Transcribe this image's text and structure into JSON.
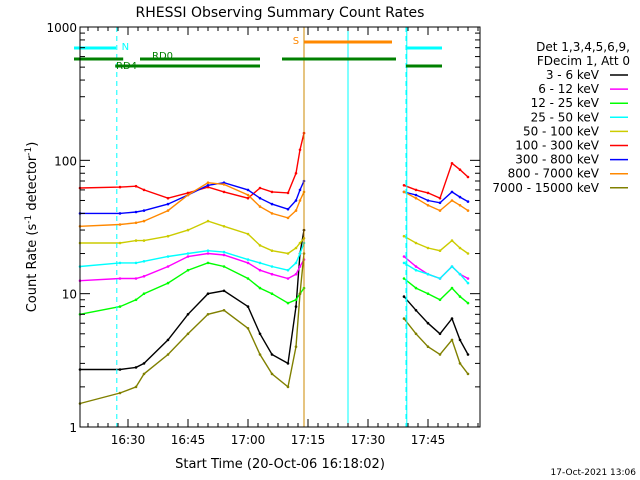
{
  "chart_data": {
    "type": "line",
    "title": "RHESSI Observing Summary Count Rates",
    "xlabel": "Start Time (20-Oct-06 16:18:02)",
    "ylabel_main": "Count Rate (s",
    "ylabel_sup1": "-1",
    "ylabel_mid": " detector",
    "ylabel_sup2": "-1",
    "ylabel_end": ")",
    "ylog": true,
    "ylim": [
      1,
      1000
    ],
    "xlim": [
      "16:18",
      "17:58"
    ],
    "x_ticks": [
      {
        "t": 30.0,
        "label": "16:30"
      },
      {
        "t": 45.0,
        "label": "16:45"
      },
      {
        "t": 60.0,
        "label": "17:00"
      },
      {
        "t": 75.0,
        "label": "17:15"
      },
      {
        "t": 90.0,
        "label": "17:30"
      },
      {
        "t": 105.0,
        "label": "17:45"
      }
    ],
    "y_ticks": [
      {
        "v": 1,
        "label": "1"
      },
      {
        "v": 10,
        "label": "10"
      },
      {
        "v": 100,
        "label": "100"
      },
      {
        "v": 1000,
        "label": "1000"
      }
    ],
    "legend_header": [
      "Det 1,3,4,5,6,9,",
      "FDecim 1, Att 0"
    ],
    "legend_position": "right",
    "series": [
      {
        "name": "3 - 6 keV",
        "color": "#000000",
        "x": [
          "16:18",
          "16:28",
          "16:32",
          "16:34",
          "16:40",
          "16:45",
          "16:50",
          "16:54",
          "17:00",
          "17:03",
          "17:06",
          "17:10",
          "17:12",
          "17:13",
          "17:14",
          "17:15",
          "17:39",
          "17:42",
          "17:45",
          "17:48",
          "17:51",
          "17:53",
          "17:55"
        ],
        "y": [
          2.7,
          2.7,
          2.8,
          3.0,
          4.5,
          7.0,
          10.0,
          10.5,
          8.0,
          5.0,
          3.5,
          3.0,
          8.0,
          20.0,
          30.0,
          null,
          9.5,
          7.5,
          6.0,
          5.0,
          6.5,
          4.5,
          3.5
        ]
      },
      {
        "name": "6 - 12 keV",
        "color": "#ff00ff",
        "x": [
          "16:18",
          "16:28",
          "16:32",
          "16:34",
          "16:40",
          "16:45",
          "16:50",
          "16:54",
          "17:00",
          "17:03",
          "17:06",
          "17:10",
          "17:12",
          "17:13",
          "17:14",
          "17:15",
          "17:39",
          "17:42",
          "17:45",
          "17:48",
          "17:51",
          "17:53",
          "17:55"
        ],
        "y": [
          12.5,
          13,
          13,
          13.5,
          16,
          19,
          20,
          19.5,
          17,
          15,
          14,
          13,
          14,
          16,
          18,
          null,
          19,
          16,
          14,
          13,
          16,
          14,
          13
        ]
      },
      {
        "name": "12 - 25 keV",
        "color": "#00ff00",
        "x": [
          "16:18",
          "16:28",
          "16:32",
          "16:34",
          "16:40",
          "16:45",
          "16:50",
          "16:54",
          "17:00",
          "17:03",
          "17:06",
          "17:10",
          "17:12",
          "17:13",
          "17:14",
          "17:15",
          "17:39",
          "17:42",
          "17:45",
          "17:48",
          "17:51",
          "17:53",
          "17:55"
        ],
        "y": [
          7,
          8,
          9,
          10,
          12,
          15,
          17,
          16,
          13,
          11,
          10,
          8.5,
          9,
          10,
          11,
          null,
          13,
          11,
          10,
          9,
          11,
          9.5,
          8.5
        ]
      },
      {
        "name": "25 - 50 keV",
        "color": "#00ffff",
        "x": [
          "16:18",
          "16:28",
          "16:32",
          "16:34",
          "16:40",
          "16:45",
          "16:50",
          "16:54",
          "17:00",
          "17:03",
          "17:06",
          "17:10",
          "17:12",
          "17:13",
          "17:14",
          "17:15",
          "17:39",
          "17:42",
          "17:45",
          "17:48",
          "17:51",
          "17:53",
          "17:55"
        ],
        "y": [
          16,
          17,
          17,
          17.5,
          19,
          20,
          21,
          20.5,
          18,
          17,
          16,
          15,
          17,
          20,
          24,
          null,
          17,
          15,
          14,
          13,
          16,
          14,
          12
        ]
      },
      {
        "name": "50 - 100 keV",
        "color": "#cccc00",
        "x": [
          "16:18",
          "16:28",
          "16:32",
          "16:34",
          "16:40",
          "16:45",
          "16:50",
          "16:54",
          "17:00",
          "17:03",
          "17:06",
          "17:10",
          "17:12",
          "17:13",
          "17:14",
          "17:15",
          "17:39",
          "17:42",
          "17:45",
          "17:48",
          "17:51",
          "17:53",
          "17:55"
        ],
        "y": [
          24,
          24,
          25,
          25,
          27,
          30,
          35,
          32,
          28,
          23,
          21,
          20,
          22,
          24,
          26,
          null,
          27,
          24,
          22,
          21,
          25,
          22,
          20
        ]
      },
      {
        "name": "100 - 300 keV",
        "color": "#ff0000",
        "x": [
          "16:18",
          "16:28",
          "16:32",
          "16:34",
          "16:40",
          "16:45",
          "16:50",
          "16:54",
          "17:00",
          "17:03",
          "17:06",
          "17:10",
          "17:12",
          "17:13",
          "17:14",
          "17:15",
          "17:39",
          "17:42",
          "17:45",
          "17:48",
          "17:51",
          "17:53",
          "17:55"
        ],
        "y": [
          62,
          63,
          64,
          60,
          52,
          57,
          63,
          58,
          52,
          62,
          58,
          57,
          80,
          120,
          160,
          null,
          65,
          60,
          57,
          52,
          95,
          85,
          75
        ]
      },
      {
        "name": "300 - 800 keV",
        "color": "#0000ff",
        "x": [
          "16:18",
          "16:28",
          "16:32",
          "16:34",
          "16:40",
          "16:45",
          "16:50",
          "16:54",
          "17:00",
          "17:03",
          "17:06",
          "17:10",
          "17:12",
          "17:13",
          "17:14",
          "17:15",
          "17:39",
          "17:42",
          "17:45",
          "17:48",
          "17:51",
          "17:53",
          "17:55"
        ],
        "y": [
          40,
          40,
          41,
          42,
          47,
          55,
          65,
          68,
          60,
          52,
          47,
          43,
          50,
          60,
          70,
          null,
          58,
          55,
          50,
          48,
          58,
          53,
          49
        ]
      },
      {
        "name": "800 - 7000 keV",
        "color": "#ff8800",
        "x": [
          "16:18",
          "16:28",
          "16:32",
          "16:34",
          "16:40",
          "16:45",
          "16:50",
          "16:54",
          "17:00",
          "17:03",
          "17:06",
          "17:10",
          "17:12",
          "17:13",
          "17:14",
          "17:15",
          "17:39",
          "17:42",
          "17:45",
          "17:48",
          "17:51",
          "17:53",
          "17:55"
        ],
        "y": [
          32,
          33,
          34,
          35,
          42,
          55,
          68,
          66,
          55,
          45,
          40,
          37,
          42,
          50,
          58,
          null,
          58,
          52,
          46,
          42,
          50,
          46,
          42
        ]
      },
      {
        "name": "7000 - 15000 keV",
        "color": "#808000",
        "x": [
          "16:18",
          "16:28",
          "16:32",
          "16:34",
          "16:40",
          "16:45",
          "16:50",
          "16:54",
          "17:00",
          "17:03",
          "17:06",
          "17:10",
          "17:12",
          "17:13",
          "17:14",
          "17:15",
          "17:39",
          "17:42",
          "17:45",
          "17:48",
          "17:51",
          "17:53",
          "17:55"
        ],
        "y": [
          1.5,
          1.8,
          2.0,
          2.5,
          3.5,
          5.0,
          7.0,
          7.5,
          5.5,
          3.5,
          2.5,
          2.0,
          4.0,
          10.0,
          20.0,
          null,
          6.5,
          5.0,
          4.0,
          3.5,
          4.5,
          3.0,
          2.5
        ]
      }
    ],
    "vertical_lines": [
      {
        "t": 27.2,
        "color": "#00ffff",
        "dashed": true
      },
      {
        "t": 74.0,
        "color": "#cc8800",
        "dashed": false
      },
      {
        "t": 85.0,
        "color": "#00ffff",
        "dashed": false
      },
      {
        "t": 99.5,
        "color": "#00ffff",
        "dashed": true
      },
      {
        "t": 99.7,
        "color": "#00ffff",
        "dashed": false
      }
    ],
    "flags": [
      {
        "label": "N",
        "color": "#00ffff",
        "segments": [
          [
            16.5,
            27.0
          ],
          [
            99.7,
            108.5
          ]
        ],
        "label_t": 28.4
      },
      {
        "label": "S",
        "color": "#ff8800",
        "segments": [
          [
            74.0,
            96.0
          ]
        ],
        "label_t": 71.2
      },
      {
        "label": "RD0",
        "color": "#008000",
        "segments": [
          [
            16.5,
            28.8
          ],
          [
            33.0,
            63.0
          ],
          [
            68.5,
            97.0
          ]
        ],
        "label_t": 36.0
      },
      {
        "label": "RD4",
        "color": "#008000",
        "segments": [
          [
            26.8,
            63.0
          ],
          [
            99.5,
            108.5
          ]
        ],
        "label_t": 27.0
      }
    ],
    "grid": false
  },
  "footer": {
    "timestamp": "17-Oct-2021 13:06"
  }
}
